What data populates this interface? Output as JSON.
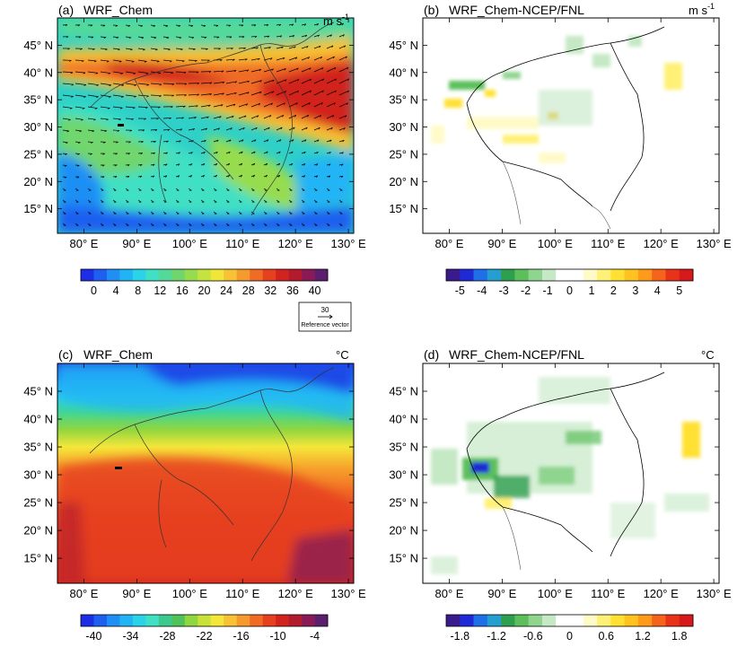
{
  "chart_data": [
    {
      "type": "heatmap",
      "panel_label": "(a)",
      "title": "WRF_Chem",
      "unit_label": "m s",
      "unit_exponent": "-1",
      "x_ticks": [
        "80° E",
        "90° E",
        "100° E",
        "110° E",
        "120° E",
        "130° E"
      ],
      "x_values": [
        80,
        90,
        100,
        110,
        120,
        130
      ],
      "y_ticks": [
        "15° N",
        "20° N",
        "25° N",
        "30° N",
        "35° N",
        "40° N",
        "45° N"
      ],
      "y_values": [
        15,
        20,
        25,
        30,
        35,
        40,
        45
      ],
      "xlim": [
        75,
        131
      ],
      "ylim": [
        10.5,
        50
      ],
      "colorbar": {
        "tick_labels": [
          "0",
          "4",
          "8",
          "12",
          "16",
          "20",
          "24",
          "28",
          "32",
          "36",
          "40"
        ],
        "colors": [
          "#1e2de6",
          "#1f5ff0",
          "#1f8ff5",
          "#21b4f5",
          "#2bd3e8",
          "#3fe0c4",
          "#55d99a",
          "#6fd66d",
          "#97dc4d",
          "#c4e33f",
          "#f0e63a",
          "#f7c234",
          "#f59a2c",
          "#f06c25",
          "#e6401f",
          "#d2231e",
          "#b31a2e",
          "#8a1a55",
          "#5c1f6e"
        ]
      },
      "reference_vector": {
        "value": "30",
        "label": "Reference vector"
      }
    },
    {
      "type": "heatmap",
      "panel_label": "(b)",
      "title": "WRF_Chem-NCEP/FNL",
      "unit_label": "m s",
      "unit_exponent": "-1",
      "x_ticks": [
        "80° E",
        "90° E",
        "100° E",
        "110° E",
        "120° E",
        "130° E"
      ],
      "y_ticks": [
        "15° N",
        "20° N",
        "25° N",
        "30° N",
        "35° N",
        "40° N",
        "45° N"
      ],
      "xlim": [
        75,
        131
      ],
      "ylim": [
        10.5,
        50
      ],
      "colorbar": {
        "tick_labels": [
          "-5",
          "-4",
          "-3",
          "-2",
          "-1",
          "0",
          "1",
          "2",
          "3",
          "4",
          "5"
        ],
        "colors": [
          "#3b1a8c",
          "#1f2ad6",
          "#1f6fe8",
          "#23a0d0",
          "#2e9e4f",
          "#5cbf5c",
          "#8fd48f",
          "#c5e8c5",
          "#ffffff",
          "#ffffff",
          "#fffbc8",
          "#fff176",
          "#ffe033",
          "#ffc21f",
          "#ff9a1a",
          "#f5641a",
          "#e8321a",
          "#d7191c"
        ]
      }
    },
    {
      "type": "heatmap",
      "panel_label": "(c)",
      "title": "WRF_Chem",
      "unit_label": "°C",
      "x_ticks": [
        "80° E",
        "90° E",
        "100° E",
        "110° E",
        "120° E",
        "130° E"
      ],
      "y_ticks": [
        "15° N",
        "20° N",
        "25° N",
        "30° N",
        "35° N",
        "40° N",
        "45° N"
      ],
      "xlim": [
        75,
        131
      ],
      "ylim": [
        10.5,
        50
      ],
      "colorbar": {
        "tick_labels": [
          "-40",
          "-34",
          "-28",
          "-22",
          "-16",
          "-10",
          "-4"
        ],
        "colors": [
          "#1e2de6",
          "#1f5ff0",
          "#1f8ff5",
          "#21b4f5",
          "#2bd3e8",
          "#3fe0c4",
          "#3cc98f",
          "#4fc35a",
          "#8fd63f",
          "#c9e23a",
          "#f5e63a",
          "#f7c234",
          "#f59a2c",
          "#f06c25",
          "#e6401f",
          "#d2231e",
          "#b31a2e",
          "#8a1a55",
          "#5c1f6e"
        ]
      }
    },
    {
      "type": "heatmap",
      "panel_label": "(d)",
      "title": "WRF_Chem-NCEP/FNL",
      "unit_label": "°C",
      "x_ticks": [
        "80° E",
        "90° E",
        "100° E",
        "110° E",
        "120° E",
        "130° E"
      ],
      "y_ticks": [
        "15° N",
        "20° N",
        "25° N",
        "30° N",
        "35° N",
        "40° N",
        "45° N"
      ],
      "xlim": [
        75,
        131
      ],
      "ylim": [
        10.5,
        50
      ],
      "colorbar": {
        "tick_labels": [
          "-1.8",
          "-1.2",
          "-0.6",
          "0",
          "0.6",
          "1.2",
          "1.8"
        ],
        "colors": [
          "#3b1a8c",
          "#1f2ad6",
          "#1f6fe8",
          "#23a0d0",
          "#2e9e4f",
          "#5cbf5c",
          "#8fd48f",
          "#c5e8c5",
          "#ffffff",
          "#ffffff",
          "#fffbc8",
          "#fff176",
          "#ffe033",
          "#ffc21f",
          "#ff9a1a",
          "#f5641a",
          "#e8321a",
          "#d7191c"
        ]
      }
    }
  ]
}
